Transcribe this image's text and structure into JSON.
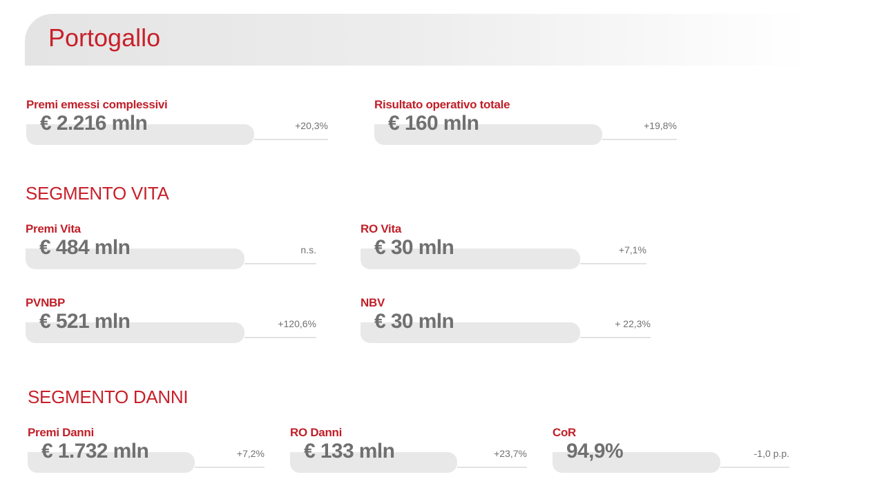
{
  "title": "Portogallo",
  "summary": {
    "cards": [
      {
        "label": "Premi emessi complessivi",
        "value": "€ 2.216 mln",
        "change": "+20,3%"
      },
      {
        "label": "Risultato operativo totale",
        "value": "€ 160 mln",
        "change": "+19,8%"
      }
    ]
  },
  "sections": [
    {
      "title": "SEGMENTO VITA",
      "cards": [
        {
          "label": "Premi Vita",
          "value": "€ 484 mln",
          "change": "n.s."
        },
        {
          "label": "RO Vita",
          "value": "€ 30 mln",
          "change": "+7,1%"
        },
        {
          "label": "PVNBP",
          "value": "€ 521 mln",
          "change": "+120,6%"
        },
        {
          "label": "NBV",
          "value": "€ 30 mln",
          "change": "+ 22,3%"
        }
      ]
    },
    {
      "title": "SEGMENTO DANNI",
      "cards": [
        {
          "label": "Premi Danni",
          "value": "€ 1.732 mln",
          "change": "+7,2%"
        },
        {
          "label": "RO Danni",
          "value": "€ 133 mln",
          "change": "+23,7%"
        },
        {
          "label": "CoR",
          "value": "94,9%",
          "change": "-1,0 p.p."
        }
      ]
    }
  ]
}
